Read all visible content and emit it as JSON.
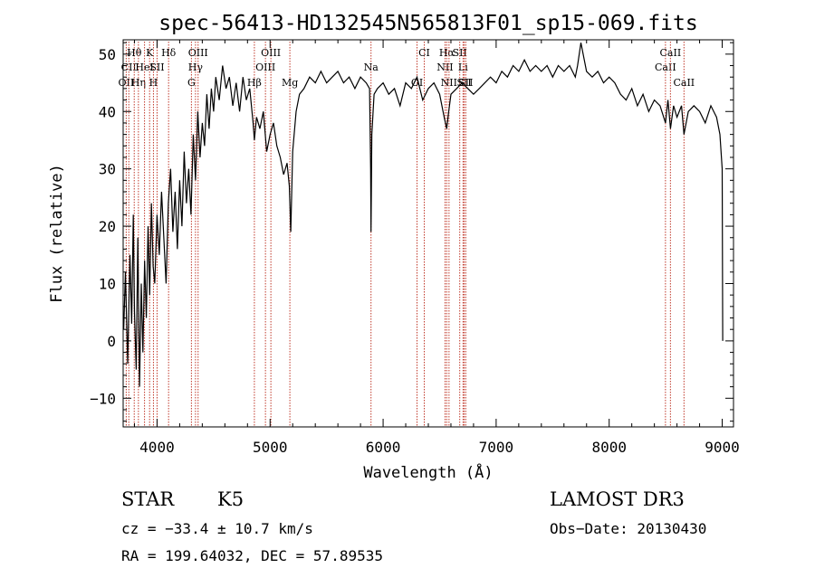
{
  "chart_data": {
    "type": "line",
    "title": "spec-56413-HD132545N565813F01_sp15-069.fits",
    "xlabel": "Wavelength (Å)",
    "ylabel": "Flux (relative)",
    "xlim": [
      3700,
      9100
    ],
    "ylim": [
      -15,
      52.5
    ],
    "grid": false,
    "x_ticks": [
      4000,
      5000,
      6000,
      7000,
      8000,
      9000
    ],
    "x_tick_labels": [
      "4000",
      "5000",
      "6000",
      "7000",
      "8000",
      "9000"
    ],
    "y_ticks": [
      -10,
      0,
      10,
      20,
      30,
      40,
      50
    ],
    "y_tick_labels": [
      "−10",
      "0",
      "10",
      "20",
      "30",
      "40",
      "50"
    ],
    "series": [
      {
        "name": "flux",
        "color": "#000000",
        "x": [
          3705,
          3720,
          3740,
          3760,
          3775,
          3790,
          3800,
          3815,
          3830,
          3845,
          3860,
          3875,
          3890,
          3905,
          3920,
          3935,
          3950,
          3965,
          3980,
          4000,
          4020,
          4040,
          4060,
          4080,
          4100,
          4120,
          4140,
          4160,
          4180,
          4200,
          4220,
          4240,
          4260,
          4280,
          4300,
          4320,
          4340,
          4360,
          4380,
          4400,
          4420,
          4440,
          4460,
          4480,
          4500,
          4520,
          4550,
          4580,
          4610,
          4640,
          4670,
          4700,
          4730,
          4760,
          4790,
          4820,
          4850,
          4861,
          4880,
          4910,
          4940,
          4970,
          5000,
          5030,
          5060,
          5090,
          5120,
          5150,
          5170,
          5183,
          5200,
          5230,
          5260,
          5300,
          5350,
          5400,
          5450,
          5500,
          5550,
          5600,
          5650,
          5700,
          5750,
          5800,
          5850,
          5880,
          5890,
          5893,
          5896,
          5900,
          5920,
          5950,
          6000,
          6050,
          6100,
          6150,
          6200,
          6250,
          6300,
          6350,
          6400,
          6450,
          6500,
          6540,
          6563,
          6580,
          6600,
          6650,
          6700,
          6750,
          6800,
          6850,
          6900,
          6950,
          7000,
          7050,
          7100,
          7150,
          7200,
          7250,
          7300,
          7350,
          7400,
          7450,
          7500,
          7550,
          7600,
          7650,
          7700,
          7720,
          7750,
          7800,
          7850,
          7900,
          7950,
          8000,
          8050,
          8100,
          8150,
          8200,
          8250,
          8300,
          8350,
          8400,
          8450,
          8498,
          8520,
          8542,
          8570,
          8600,
          8640,
          8662,
          8700,
          8750,
          8800,
          8850,
          8900,
          8950,
          8980,
          9000,
          9005
        ],
        "y": [
          2,
          12,
          -4,
          15,
          3,
          22,
          5,
          -5,
          18,
          -8,
          10,
          -2,
          14,
          4,
          20,
          8,
          24,
          13,
          10,
          22,
          15,
          26,
          18,
          10,
          24,
          30,
          19,
          26,
          16,
          28,
          20,
          33,
          24,
          30,
          22,
          36,
          28,
          40,
          32,
          38,
          34,
          43,
          37,
          44,
          40,
          46,
          42,
          48,
          44,
          46,
          41,
          45,
          40,
          46,
          42,
          44,
          38,
          35,
          39,
          37,
          40,
          33,
          36,
          38,
          34,
          32,
          29,
          31,
          27,
          19,
          33,
          40,
          43,
          44,
          46,
          45,
          47,
          45,
          46,
          47,
          45,
          46,
          44,
          46,
          45,
          44,
          30,
          19,
          26,
          36,
          43,
          44,
          45,
          43,
          44,
          41,
          45,
          44,
          46,
          42,
          44,
          45,
          43,
          39,
          37,
          40,
          43,
          44,
          45,
          44,
          43,
          44,
          45,
          46,
          45,
          47,
          46,
          48,
          47,
          49,
          47,
          48,
          47,
          48,
          46,
          48,
          47,
          48,
          46,
          48,
          52,
          47,
          46,
          47,
          45,
          46,
          45,
          43,
          42,
          44,
          41,
          43,
          40,
          42,
          41,
          38,
          42,
          37,
          41,
          39,
          41,
          36,
          40,
          41,
          40,
          38,
          41,
          39,
          36,
          30,
          0
        ]
      }
    ],
    "line_markers": [
      {
        "wavelength": 3727,
        "label": "OII",
        "row": 3
      },
      {
        "wavelength": 3750,
        "label": "CII",
        "row": 2
      },
      {
        "wavelength": 3798,
        "label": "Hθ",
        "row": 1
      },
      {
        "wavelength": 3835,
        "label": "Hη",
        "row": 3
      },
      {
        "wavelength": 3889,
        "label": "HeI",
        "row": 2
      },
      {
        "wavelength": 3934,
        "label": "K",
        "row": 1
      },
      {
        "wavelength": 3968,
        "label": "H",
        "row": 3
      },
      {
        "wavelength": 4000,
        "label": "SII",
        "row": 2
      },
      {
        "wavelength": 4102,
        "label": "Hδ",
        "row": 1
      },
      {
        "wavelength": 4304,
        "label": "G",
        "row": 3
      },
      {
        "wavelength": 4340,
        "label": "Hγ",
        "row": 2
      },
      {
        "wavelength": 4363,
        "label": "OIII",
        "row": 1
      },
      {
        "wavelength": 4861,
        "label": "Hβ",
        "row": 3
      },
      {
        "wavelength": 4959,
        "label": "OIII",
        "row": 2
      },
      {
        "wavelength": 5007,
        "label": "OIII",
        "row": 1
      },
      {
        "wavelength": 5175,
        "label": "Mg",
        "row": 3
      },
      {
        "wavelength": 5893,
        "label": "Na",
        "row": 2
      },
      {
        "wavelength": 6300,
        "label": "OI",
        "row": 3
      },
      {
        "wavelength": 6364,
        "label": "CI",
        "row": 1
      },
      {
        "wavelength": 6548,
        "label": "NII",
        "row": 2
      },
      {
        "wavelength": 6563,
        "label": "Hα",
        "row": 1
      },
      {
        "wavelength": 6583,
        "label": "NII",
        "row": 3
      },
      {
        "wavelength": 6678,
        "label": "SII",
        "row": 1
      },
      {
        "wavelength": 6707,
        "label": "Li",
        "row": 2
      },
      {
        "wavelength": 6717,
        "label": "SII",
        "row": 3
      },
      {
        "wavelength": 6731,
        "label": "SII",
        "row": 3
      },
      {
        "wavelength": 8498,
        "label": "CaII",
        "row": 2
      },
      {
        "wavelength": 8542,
        "label": "CaII",
        "row": 1
      },
      {
        "wavelength": 8662,
        "label": "CaII",
        "row": 3
      }
    ]
  },
  "info": {
    "class_label": "STAR",
    "subclass_label": "K5",
    "survey_label": "LAMOST DR3",
    "cz_text": "cz = −33.4 ± 10.7 km/s",
    "obs_date_text": "Obs−Date: 20130430",
    "coords_text": "RA = 199.64032, DEC =  57.89535"
  },
  "colors": {
    "spectrum": "#000000",
    "line_markers": "#c0392b",
    "axes": "#000000"
  }
}
